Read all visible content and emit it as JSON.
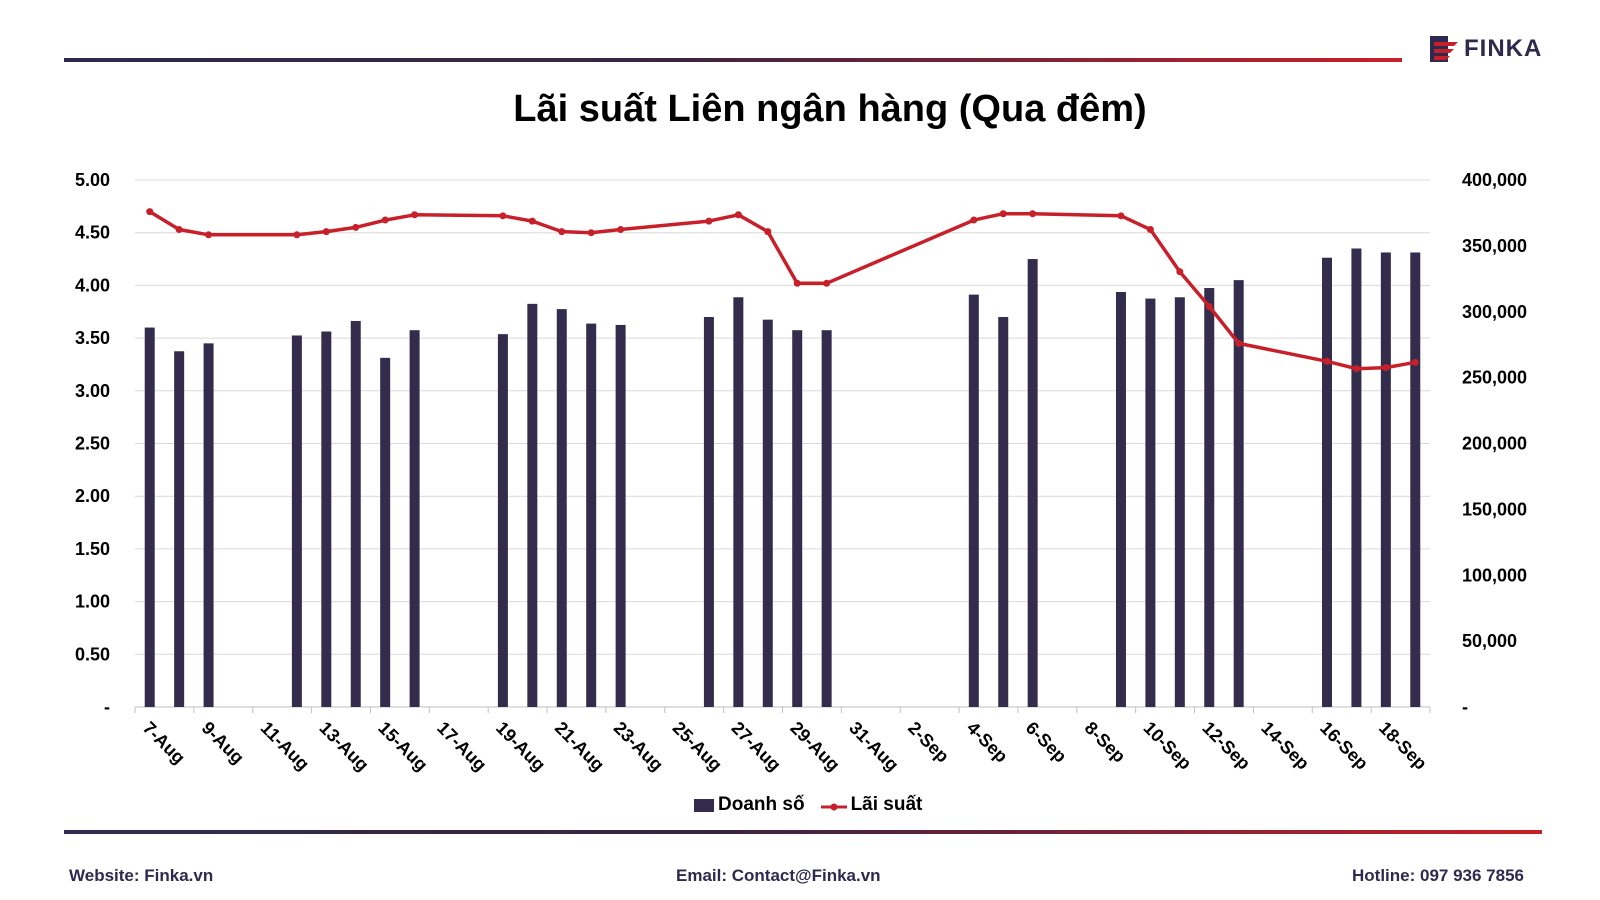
{
  "title": "Lãi suất Liên ngân hàng (Qua đêm)",
  "logo": {
    "text": "FINKA"
  },
  "footer": {
    "website": "Website: Finka.vn",
    "email": "Email: Contact@Finka.vn",
    "hotline": "Hotline: 097 936 7856"
  },
  "colors": {
    "bar": "#342c4d",
    "line": "#c8202a",
    "grid": "#d9d9d9",
    "brand_dark": "#2e2a4f",
    "brand_red": "#c8202a"
  },
  "chart_data": {
    "type": "bar",
    "categories": [
      "7-Aug",
      "8-Aug",
      "9-Aug",
      "10-Aug",
      "11-Aug",
      "12-Aug",
      "13-Aug",
      "14-Aug",
      "15-Aug",
      "16-Aug",
      "17-Aug",
      "18-Aug",
      "19-Aug",
      "20-Aug",
      "21-Aug",
      "22-Aug",
      "23-Aug",
      "24-Aug",
      "25-Aug",
      "26-Aug",
      "27-Aug",
      "28-Aug",
      "29-Aug",
      "30-Aug",
      "31-Aug",
      "1-Sep",
      "2-Sep",
      "3-Sep",
      "4-Sep",
      "5-Sep",
      "6-Sep",
      "7-Sep",
      "8-Sep",
      "9-Sep",
      "10-Sep",
      "11-Sep",
      "12-Sep",
      "13-Sep",
      "14-Sep",
      "15-Sep",
      "16-Sep",
      "17-Sep",
      "18-Sep",
      "19-Sep"
    ],
    "x_tick_labels": [
      "7-Aug",
      "9-Aug",
      "11-Aug",
      "13-Aug",
      "15-Aug",
      "17-Aug",
      "19-Aug",
      "21-Aug",
      "23-Aug",
      "25-Aug",
      "27-Aug",
      "29-Aug",
      "31-Aug",
      "2-Sep",
      "4-Sep",
      "6-Sep",
      "8-Sep",
      "10-Sep",
      "12-Sep",
      "14-Sep",
      "16-Sep",
      "18-Sep"
    ],
    "series": [
      {
        "name": "Doanh số",
        "type": "bar",
        "axis": "right",
        "values": [
          288000,
          270000,
          276000,
          null,
          null,
          282000,
          285000,
          293000,
          265000,
          286000,
          null,
          null,
          283000,
          306000,
          302000,
          291000,
          290000,
          null,
          null,
          296000,
          311000,
          294000,
          286000,
          286000,
          null,
          null,
          null,
          null,
          313000,
          296000,
          340000,
          null,
          null,
          315000,
          310000,
          311000,
          318000,
          324000,
          null,
          null,
          341000,
          348000,
          345000,
          345000
        ]
      },
      {
        "name": "Lãi suất",
        "type": "line",
        "axis": "left",
        "values": [
          4.7,
          4.53,
          4.48,
          null,
          null,
          4.48,
          4.51,
          4.55,
          4.62,
          4.67,
          null,
          null,
          4.66,
          4.61,
          4.51,
          4.5,
          4.53,
          null,
          null,
          4.61,
          4.67,
          4.51,
          4.02,
          4.02,
          null,
          null,
          null,
          null,
          4.62,
          4.68,
          4.68,
          null,
          null,
          4.66,
          4.53,
          4.13,
          3.8,
          3.45,
          null,
          null,
          3.28,
          3.21,
          3.22,
          3.27
        ]
      }
    ],
    "y_left": {
      "ticks": [
        "-",
        "0.50",
        "1.00",
        "1.50",
        "2.00",
        "2.50",
        "3.00",
        "3.50",
        "4.00",
        "4.50",
        "5.00"
      ],
      "range": [
        0,
        5
      ]
    },
    "y_right": {
      "ticks": [
        "-",
        "50,000",
        "100,000",
        "150,000",
        "200,000",
        "250,000",
        "300,000",
        "350,000",
        "400,000"
      ],
      "range": [
        0,
        400000
      ]
    },
    "grid": true,
    "legend": {
      "position": "bottom",
      "entries": [
        "Doanh số",
        "Lãi suất"
      ]
    }
  }
}
